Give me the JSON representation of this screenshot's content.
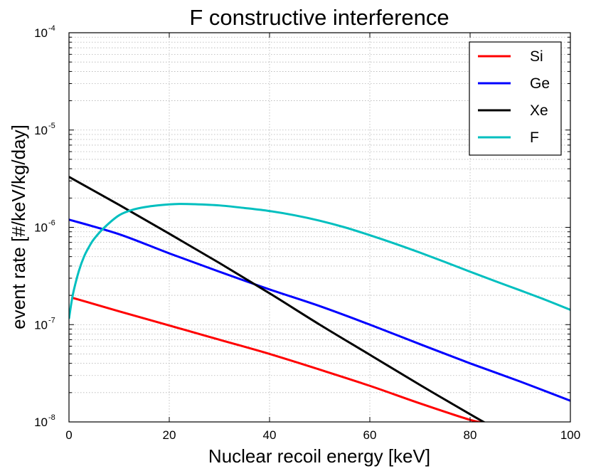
{
  "chart_data": {
    "type": "line",
    "title": "F constructive interference",
    "xlabel": "Nuclear recoil energy [keV]",
    "ylabel": "event rate [#/keV/kg/day]",
    "xlim": [
      0,
      100
    ],
    "ylim": [
      1e-08,
      0.0001
    ],
    "yscale": "log",
    "grid": true,
    "legend_position": "top-right",
    "x_ticks": [
      {
        "value": 0,
        "label": "0"
      },
      {
        "value": 20,
        "label": "20"
      },
      {
        "value": 40,
        "label": "40"
      },
      {
        "value": 60,
        "label": "60"
      },
      {
        "value": 80,
        "label": "80"
      },
      {
        "value": 100,
        "label": "100"
      }
    ],
    "y_ticks": [
      {
        "value": 1e-08,
        "base": "10",
        "exp": "-8"
      },
      {
        "value": 1e-07,
        "base": "10",
        "exp": "-7"
      },
      {
        "value": 1e-06,
        "base": "10",
        "exp": "-6"
      },
      {
        "value": 1e-05,
        "base": "10",
        "exp": "-5"
      },
      {
        "value": 0.0001,
        "base": "10",
        "exp": "-4"
      }
    ],
    "series": [
      {
        "name": "Si",
        "color": "#ff0000",
        "points": [
          [
            0.5,
            1.9e-07
          ],
          [
            10,
            1.37e-07
          ],
          [
            20,
            9.8e-08
          ],
          [
            30,
            7e-08
          ],
          [
            40,
            5e-08
          ],
          [
            50,
            3.45e-08
          ],
          [
            60,
            2.35e-08
          ],
          [
            70,
            1.55e-08
          ],
          [
            80,
            1.05e-08
          ],
          [
            83,
            9.8e-09
          ]
        ]
      },
      {
        "name": "Ge",
        "color": "#0000ff",
        "points": [
          [
            0,
            1.2e-06
          ],
          [
            10,
            8.5e-07
          ],
          [
            20,
            5.4e-07
          ],
          [
            30,
            3.5e-07
          ],
          [
            40,
            2.3e-07
          ],
          [
            50,
            1.55e-07
          ],
          [
            60,
            1e-07
          ],
          [
            70,
            6.3e-08
          ],
          [
            80,
            4e-08
          ],
          [
            90,
            2.6e-08
          ],
          [
            100,
            1.65e-08
          ]
        ]
      },
      {
        "name": "Xe",
        "color": "#000000",
        "points": [
          [
            0,
            3.3e-06
          ],
          [
            10,
            1.7e-06
          ],
          [
            20,
            8.6e-07
          ],
          [
            30,
            4.3e-07
          ],
          [
            40,
            2.1e-07
          ],
          [
            50,
            1e-07
          ],
          [
            60,
            4.9e-08
          ],
          [
            70,
            2.4e-08
          ],
          [
            80,
            1.2e-08
          ],
          [
            83,
            9.8e-09
          ]
        ]
      },
      {
        "name": "F",
        "color": "#00bfbf",
        "points": [
          [
            0,
            1.15e-07
          ],
          [
            0.5,
            1.7e-07
          ],
          [
            1,
            2.3e-07
          ],
          [
            2,
            3.6e-07
          ],
          [
            3,
            5e-07
          ],
          [
            4,
            6.3e-07
          ],
          [
            5,
            7.6e-07
          ],
          [
            7,
            9.9e-07
          ],
          [
            10,
            1.33e-06
          ],
          [
            13,
            1.53e-06
          ],
          [
            16,
            1.64e-06
          ],
          [
            20,
            1.72e-06
          ],
          [
            22,
            1.74e-06
          ],
          [
            25,
            1.73e-06
          ],
          [
            30,
            1.68e-06
          ],
          [
            35,
            1.58e-06
          ],
          [
            40,
            1.47e-06
          ],
          [
            45,
            1.33e-06
          ],
          [
            50,
            1.17e-06
          ],
          [
            55,
            1e-06
          ],
          [
            60,
            8.3e-07
          ],
          [
            65,
            6.8e-07
          ],
          [
            70,
            5.5e-07
          ],
          [
            75,
            4.4e-07
          ],
          [
            80,
            3.5e-07
          ],
          [
            85,
            2.8e-07
          ],
          [
            90,
            2.25e-07
          ],
          [
            95,
            1.8e-07
          ],
          [
            100,
            1.42e-07
          ]
        ]
      }
    ]
  }
}
